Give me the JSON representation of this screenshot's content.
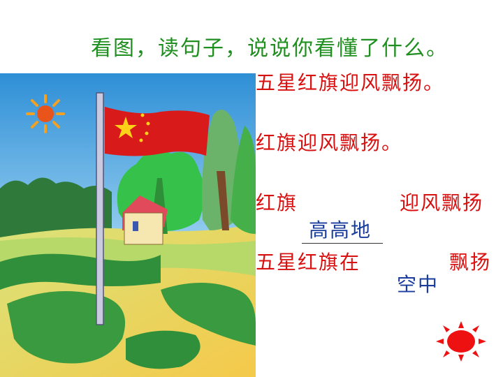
{
  "title": "看图，读句子，说说你看懂了什么。",
  "lines": {
    "line1": "五星红旗迎风飘扬。",
    "line2": "红旗迎风飘扬。",
    "line3a": "红旗",
    "line3b": "迎风飘扬",
    "line3_answer": "高高地",
    "line4a": "五星红旗在",
    "line4b": "飘扬",
    "line4_answer": "空中"
  },
  "colors": {
    "title": "#1f8f1f",
    "text": "#d81010",
    "answer": "#1a3c9c"
  }
}
